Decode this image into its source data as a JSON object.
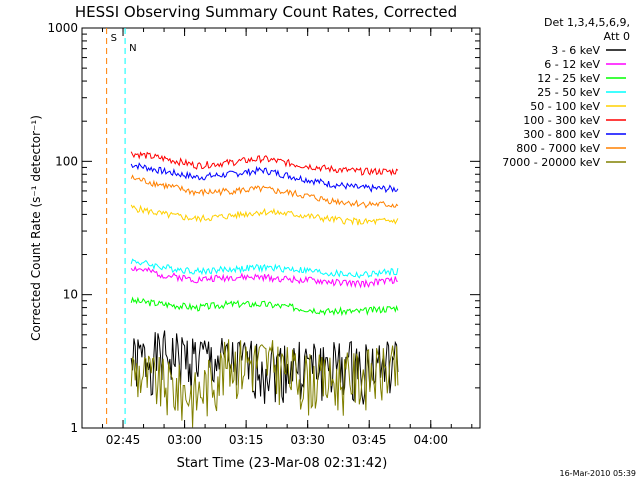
{
  "chart_data": {
    "type": "line",
    "title": "HESSI Observing Summary Count Rates, Corrected",
    "ylabel": "Corrected Count Rate (s⁻¹ detector⁻¹)",
    "xlabel": "Start Time (23-Mar-08 02:31:42)",
    "x_ticks": [
      "02:45",
      "03:00",
      "03:15",
      "03:30",
      "03:45",
      "04:00"
    ],
    "y_ticks": [
      "1",
      "10",
      "100",
      "1000"
    ],
    "y_scale": "log",
    "ylim": [
      1,
      1000
    ],
    "xlim": [
      "02:35",
      "04:12"
    ],
    "legend_header": [
      "Det 1,3,4,5,6,9,",
      "Att 0"
    ],
    "legend_position": "right",
    "footer_timestamp": "16-Mar-2010 05:39",
    "annotations": [
      {
        "label": "S",
        "time": "02:41",
        "color": "#ff8000"
      },
      {
        "label": "N",
        "time": "02:45.5",
        "color": "#00ffff"
      }
    ],
    "series": [
      {
        "name": "3 - 6 keV",
        "color": "#000000",
        "values": [
          3.2,
          3.6,
          3.4,
          3.1,
          3.0,
          3.0,
          3.0,
          3.0,
          3.0
        ]
      },
      {
        "name": "6 - 12 keV",
        "color": "#ff00ff",
        "values": [
          16,
          14,
          13,
          13.5,
          13.5,
          13,
          12.5,
          12,
          13
        ]
      },
      {
        "name": "12 - 25 keV",
        "color": "#00ff00",
        "values": [
          9,
          8.5,
          8,
          8.5,
          8.5,
          8,
          7.5,
          7.5,
          8
        ]
      },
      {
        "name": "25 - 50 keV",
        "color": "#00ffff",
        "values": [
          18,
          16,
          15,
          15.5,
          16,
          15.5,
          14.5,
          14,
          15
        ]
      },
      {
        "name": "50 - 100 keV",
        "color": "#ffd000",
        "values": [
          45,
          40,
          37,
          39,
          42,
          40,
          37,
          35,
          36
        ]
      },
      {
        "name": "100 - 300 keV",
        "color": "#ff0000",
        "values": [
          115,
          105,
          93,
          98,
          105,
          95,
          88,
          84,
          84
        ]
      },
      {
        "name": "300 - 800 keV",
        "color": "#0000ff",
        "values": [
          95,
          84,
          76,
          80,
          86,
          76,
          68,
          63,
          62
        ]
      },
      {
        "name": "800 - 7000 keV",
        "color": "#ff8000",
        "values": [
          75,
          66,
          58,
          60,
          62,
          57,
          51,
          48,
          47
        ]
      },
      {
        "name": "7000 - 20000 keV",
        "color": "#808000",
        "values": [
          2.8,
          2.2,
          1.8,
          3.2,
          3.3,
          2.6,
          2.3,
          2.6,
          2.8
        ]
      }
    ],
    "x_times": [
      "02:47",
      "02:55",
      "03:03",
      "03:11",
      "03:19",
      "03:27",
      "03:35",
      "03:43",
      "03:52"
    ]
  }
}
